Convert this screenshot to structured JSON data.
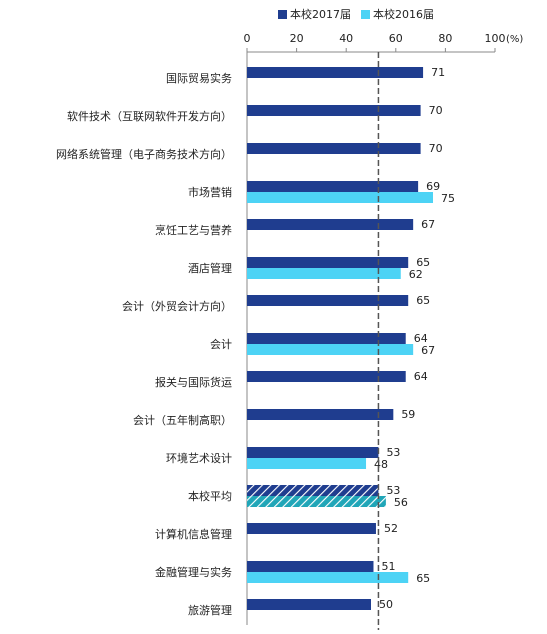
{
  "chart_data": {
    "type": "bar",
    "orientation": "horizontal",
    "categories": [
      "国际贸易实务",
      "软件技术（互联网软件开发方向）",
      "网络系统管理（电子商务技术方向）",
      "市场营销",
      "烹饪工艺与营养",
      "酒店管理",
      "会计（外贸会计方向）",
      "会计",
      "报关与国际货运",
      "会计（五年制高职）",
      "环境艺术设计",
      "本校平均",
      "计算机信息管理",
      "金融管理与实务",
      "旅游管理"
    ],
    "series": [
      {
        "name": "本校2017届",
        "color": "#1f3d8f",
        "values": [
          71,
          70,
          70,
          69,
          67,
          65,
          65,
          64,
          64,
          59,
          53,
          53,
          52,
          51,
          50
        ]
      },
      {
        "name": "本校2016届",
        "color": "#4dd3f5",
        "values": [
          null,
          null,
          null,
          75,
          null,
          62,
          null,
          67,
          null,
          null,
          48,
          56,
          null,
          65,
          null
        ]
      }
    ],
    "highlight_category": "本校平均",
    "reference_line": 53,
    "xlim": [
      0,
      100
    ],
    "xticks": [
      0,
      20,
      40,
      60,
      80,
      100
    ],
    "xtick_labels": [
      "0",
      "20",
      "40",
      "60",
      "80",
      "100"
    ],
    "axis_unit": "(%)",
    "xaxis_position": "top",
    "legend_position": "top"
  }
}
